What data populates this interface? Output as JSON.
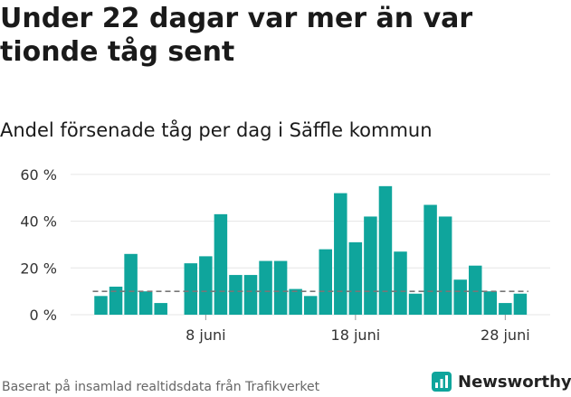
{
  "headline": "Under 22 dagar var mer än var tionde tåg sent",
  "source": "Baserat på insamlad realtidsdata från Trafikverket",
  "brand": {
    "name": "Newsworthy",
    "logo_icon": "newsworthy-logo-icon"
  },
  "colors": {
    "bar": "#0fa59c",
    "reference": "#777777",
    "grid": "#e6e6e6",
    "brand": "#0fa59c"
  },
  "chart_data": {
    "type": "bar",
    "title": "Andel försenade tåg per dag i Säffle kommun",
    "xlabel": "",
    "ylabel": "",
    "ylim": [
      0,
      65
    ],
    "yticks": [
      0,
      20,
      40,
      60
    ],
    "ytick_labels": [
      "0 %",
      "20 %",
      "40 %",
      "60 %"
    ],
    "xticks": [
      {
        "day": 8,
        "label": "8 juni"
      },
      {
        "day": 18,
        "label": "18 juni"
      },
      {
        "day": 28,
        "label": "28 juni"
      }
    ],
    "reference_line": {
      "value": 10,
      "style": "dashed"
    },
    "grid": true,
    "series": [
      {
        "days": [
          1,
          2,
          3,
          4,
          5,
          6,
          7,
          8,
          9,
          10,
          11,
          12,
          13,
          14,
          15,
          16,
          17,
          18,
          19,
          20,
          21,
          22,
          23,
          24,
          25,
          26,
          27,
          28,
          29,
          30
        ],
        "values": [
          8,
          12,
          26,
          10,
          5,
          null,
          22,
          25,
          43,
          17,
          17,
          23,
          23,
          11,
          8,
          28,
          52,
          31,
          42,
          55,
          27,
          9,
          47,
          42,
          15,
          21,
          10,
          5,
          9,
          null
        ]
      }
    ]
  }
}
